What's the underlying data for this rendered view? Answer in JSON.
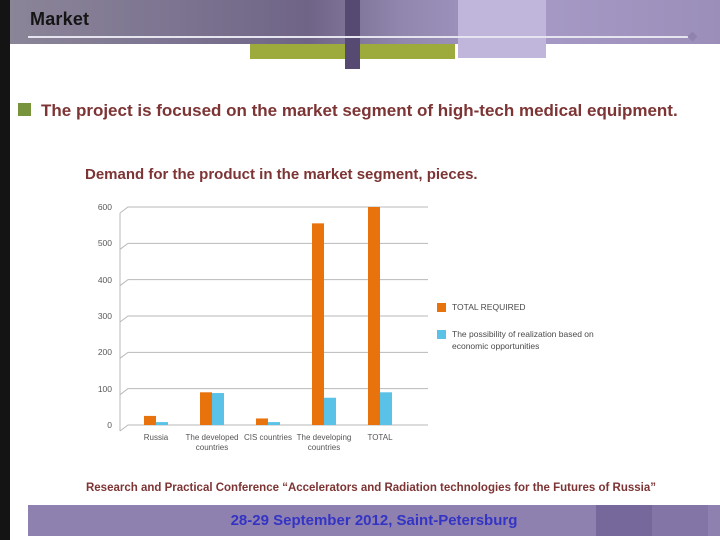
{
  "slide": {
    "title": "Market",
    "bullet_text": "The project is focused on the market segment of high-tech medical equipment.",
    "chart_title": "Demand for the product in the market segment, pieces.",
    "footer_text": "Research and Practical Conference “Accelerators and Radiation technologies for the Futures of Russia”",
    "footer_bar_text": "28-29 September 2012, Saint-Petersburg"
  },
  "colors": {
    "accent_maroon": "#7d3434",
    "bullet_green": "#77933c",
    "band_purple": "#8f84ad",
    "footer_bar_purple": "#8e81b0",
    "footer_bar_text_blue": "#3434c4",
    "bar_orange": "#e8730d",
    "bar_blue": "#5bc2e7"
  },
  "chart_data": {
    "type": "bar",
    "title": "Demand for the product in the market segment, pieces.",
    "categories": [
      "Russia",
      "The developed countries",
      "CIS countries",
      "The developing countries",
      "TOTAL"
    ],
    "series": [
      {
        "name": "TOTAL REQUIRED",
        "color": "#e8730d",
        "values": [
          25,
          90,
          18,
          555,
          600
        ]
      },
      {
        "name": "The possibility of realization based on economic opportunities",
        "color": "#5bc2e7",
        "values": [
          8,
          88,
          8,
          75,
          90
        ]
      }
    ],
    "ylim": [
      0,
      600
    ],
    "ytick_step": 100,
    "yticks": [
      0,
      100,
      200,
      300,
      400,
      500,
      600
    ],
    "xlabel": "",
    "ylabel": "",
    "grid": true,
    "legend_position": "right"
  }
}
